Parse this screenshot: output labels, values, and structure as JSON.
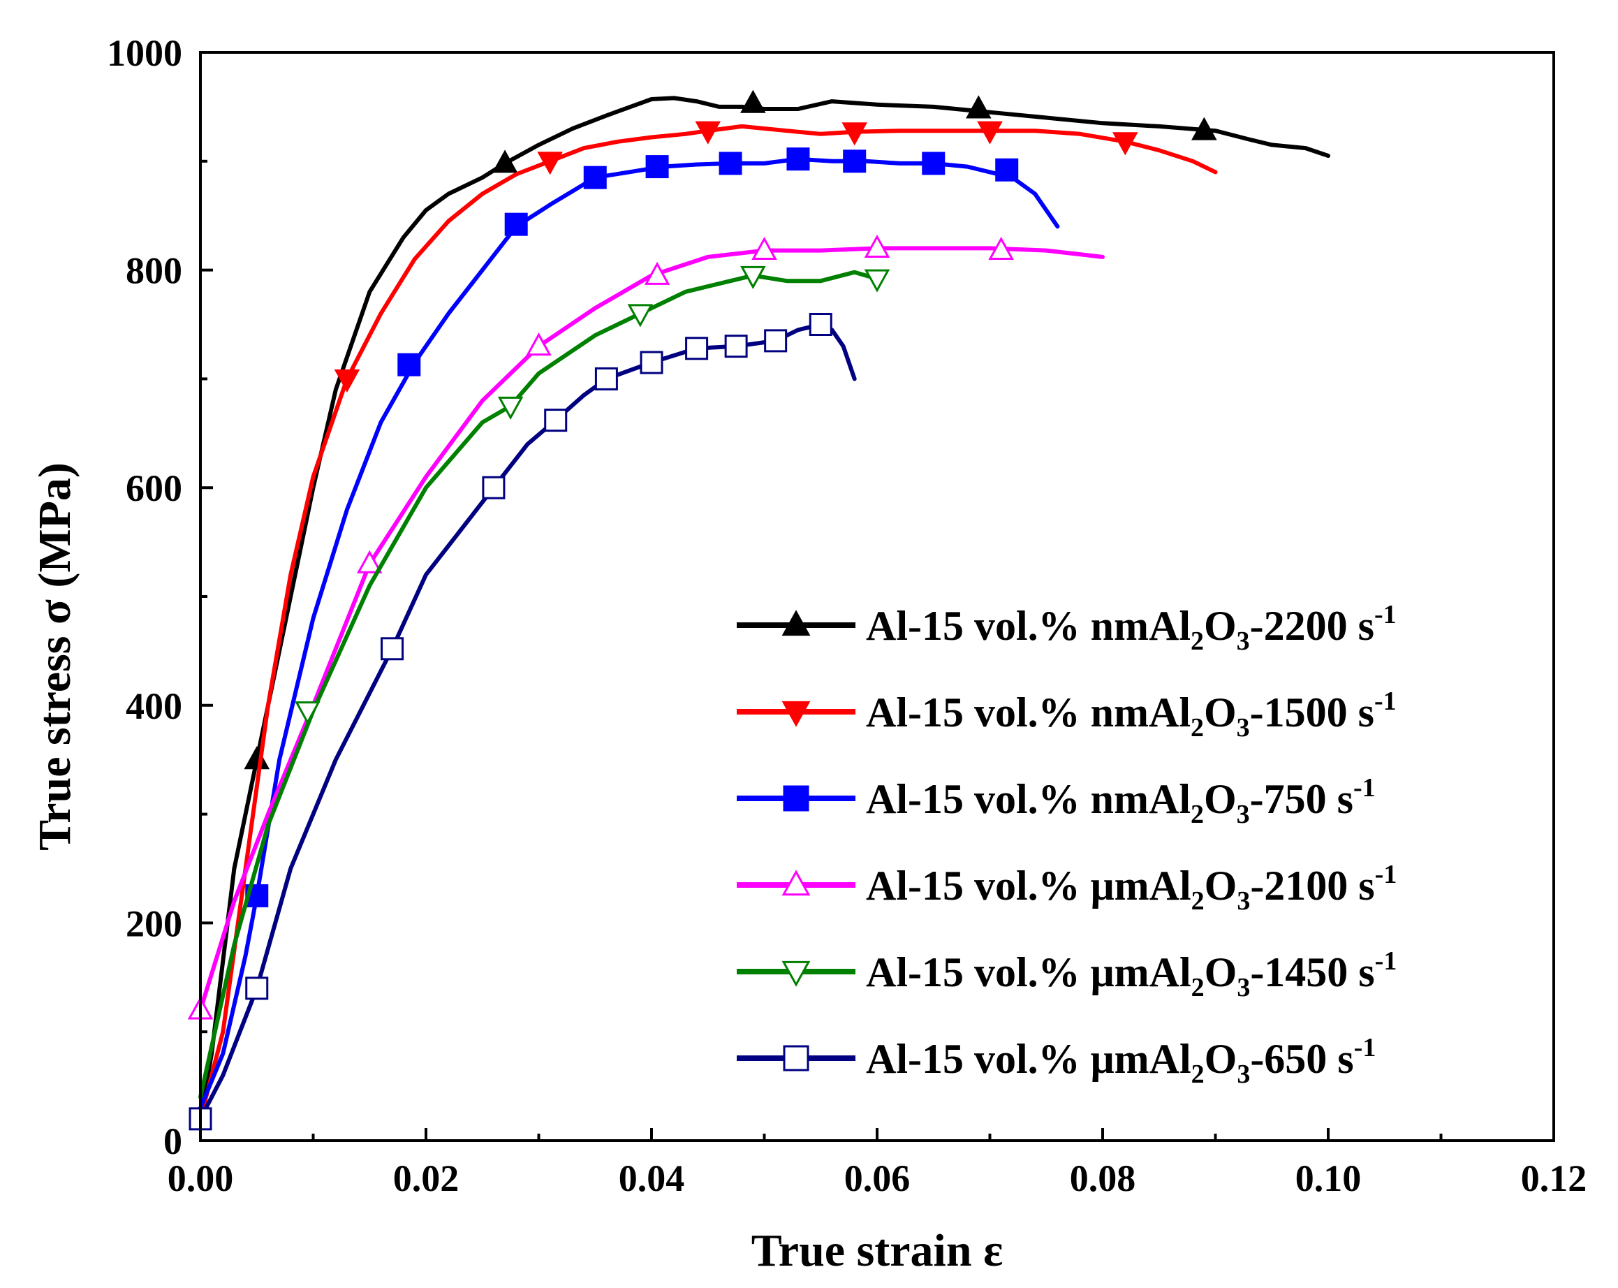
{
  "chart_data": {
    "type": "line",
    "title": "",
    "xlabel": "True strain ε",
    "ylabel": "True stress σ (MPa)",
    "xlim": [
      0.0,
      0.12
    ],
    "ylim": [
      0,
      1000
    ],
    "grid": false,
    "legend_position": "lower-right",
    "x_ticks": [
      0.0,
      0.02,
      0.04,
      0.06,
      0.08,
      0.1,
      0.12
    ],
    "x_tick_labels": [
      "0.00",
      "0.02",
      "0.04",
      "0.06",
      "0.08",
      "0.10",
      "0.12"
    ],
    "y_ticks": [
      0,
      200,
      400,
      600,
      800,
      1000
    ],
    "y_tick_labels": [
      "0",
      "200",
      "400",
      "600",
      "800",
      "1000"
    ],
    "series": [
      {
        "name": "Al-15 vol.% nmAl2O3-2200 s-1",
        "legend": {
          "prefix": "Al-15 vol.% nmAl",
          "sub1": "2",
          "mid": "O",
          "sub2": "3",
          "suffix": "-2200 s",
          "sup": "-1"
        },
        "color": "#000000",
        "marker": "triangle-up",
        "filled": true,
        "x": [
          0.0,
          0.001,
          0.003,
          0.005,
          0.008,
          0.01,
          0.012,
          0.015,
          0.018,
          0.02,
          0.022,
          0.025,
          0.027,
          0.03,
          0.033,
          0.036,
          0.04,
          0.042,
          0.044,
          0.046,
          0.048,
          0.05,
          0.053,
          0.056,
          0.06,
          0.065,
          0.07,
          0.075,
          0.08,
          0.085,
          0.09,
          0.093,
          0.095,
          0.098,
          0.1
        ],
        "y": [
          20,
          80,
          250,
          350,
          500,
          600,
          690,
          780,
          830,
          855,
          870,
          885,
          898,
          915,
          930,
          942,
          957,
          958,
          955,
          950,
          950,
          948,
          948,
          955,
          952,
          950,
          945,
          940,
          935,
          932,
          928,
          920,
          915,
          912,
          905
        ],
        "marker_x": [
          0.005,
          0.027,
          0.049,
          0.069,
          0.089
        ],
        "marker_y": [
          350,
          898,
          953,
          948,
          928
        ]
      },
      {
        "name": "Al-15 vol.% nmAl2O3-1500 s-1",
        "legend": {
          "prefix": "Al-15 vol.% nmAl",
          "sub1": "2",
          "mid": "O",
          "sub2": "3",
          "suffix": "-1500 s",
          "sup": "-1"
        },
        "color": "#ff0000",
        "marker": "triangle-down",
        "filled": true,
        "x": [
          0.0,
          0.002,
          0.004,
          0.006,
          0.008,
          0.01,
          0.013,
          0.016,
          0.019,
          0.022,
          0.025,
          0.028,
          0.031,
          0.034,
          0.037,
          0.04,
          0.043,
          0.045,
          0.048,
          0.052,
          0.055,
          0.058,
          0.062,
          0.066,
          0.07,
          0.074,
          0.078,
          0.082,
          0.085,
          0.088,
          0.09
        ],
        "y": [
          20,
          100,
          250,
          400,
          520,
          610,
          700,
          760,
          810,
          845,
          870,
          888,
          900,
          912,
          918,
          922,
          925,
          928,
          932,
          928,
          925,
          927,
          928,
          928,
          928,
          928,
          925,
          918,
          910,
          900,
          890
        ],
        "marker_x": [
          0.013,
          0.031,
          0.045,
          0.058,
          0.07,
          0.082
        ],
        "marker_y": [
          700,
          900,
          928,
          927,
          928,
          918
        ]
      },
      {
        "name": "Al-15 vol.% nmAl2O3-750 s-1",
        "legend": {
          "prefix": "Al-15 vol.% nmAl",
          "sub1": "2",
          "mid": "O",
          "sub2": "3",
          "suffix": "-750 s",
          "sup": "-1"
        },
        "color": "#0000ff",
        "marker": "square",
        "filled": true,
        "x": [
          0.0,
          0.002,
          0.004,
          0.005,
          0.007,
          0.01,
          0.013,
          0.016,
          0.019,
          0.022,
          0.025,
          0.028,
          0.031,
          0.035,
          0.038,
          0.041,
          0.044,
          0.047,
          0.05,
          0.053,
          0.056,
          0.059,
          0.062,
          0.065,
          0.068,
          0.07,
          0.072,
          0.074,
          0.075,
          0.076
        ],
        "y": [
          30,
          80,
          170,
          225,
          350,
          480,
          580,
          660,
          715,
          760,
          800,
          840,
          860,
          885,
          890,
          895,
          897,
          898,
          898,
          902,
          900,
          900,
          898,
          898,
          895,
          890,
          885,
          870,
          855,
          840
        ],
        "marker_x": [
          0.005,
          0.0185,
          0.028,
          0.035,
          0.0405,
          0.047,
          0.053,
          0.058,
          0.065,
          0.0715
        ],
        "marker_y": [
          225,
          713,
          842,
          885,
          895,
          898,
          902,
          900,
          898,
          892
        ]
      },
      {
        "name": "Al-15 vol.% μmAl2O3-2100 s-1",
        "legend": {
          "prefix": "Al-15 vol.% μmAl",
          "sub1": "2",
          "mid": "O",
          "sub2": "3",
          "suffix": "-2100 s",
          "sup": "-1"
        },
        "color": "#ff00ff",
        "marker": "triangle-up",
        "filled": false,
        "x": [
          0.0,
          0.003,
          0.006,
          0.01,
          0.015,
          0.02,
          0.025,
          0.03,
          0.035,
          0.04,
          0.045,
          0.05,
          0.055,
          0.06,
          0.065,
          0.07,
          0.075,
          0.08
        ],
        "y": [
          120,
          220,
          300,
          400,
          530,
          610,
          680,
          730,
          765,
          795,
          812,
          818,
          818,
          820,
          820,
          820,
          818,
          812
        ],
        "marker_x": [
          0.0,
          0.015,
          0.03,
          0.0405,
          0.05,
          0.06,
          0.071
        ],
        "marker_y": [
          120,
          530,
          730,
          795,
          818,
          820,
          818
        ]
      },
      {
        "name": "Al-15 vol.% μmAl2O3-1450 s-1",
        "legend": {
          "prefix": "Al-15 vol.% μmAl",
          "sub1": "2",
          "mid": "O",
          "sub2": "3",
          "suffix": "-1450 s",
          "sup": "-1"
        },
        "color": "#008000",
        "marker": "triangle-down",
        "filled": false,
        "x": [
          0.0,
          0.003,
          0.006,
          0.01,
          0.015,
          0.02,
          0.025,
          0.0275,
          0.03,
          0.035,
          0.039,
          0.043,
          0.047,
          0.049,
          0.052,
          0.055,
          0.058,
          0.06
        ],
        "y": [
          40,
          180,
          290,
          395,
          510,
          600,
          660,
          675,
          705,
          740,
          760,
          780,
          790,
          795,
          790,
          790,
          798,
          792
        ],
        "marker_x": [
          0.0095,
          0.0275,
          0.039,
          0.049,
          0.06
        ],
        "marker_y": [
          395,
          675,
          760,
          795,
          792
        ]
      },
      {
        "name": "Al-15 vol.% μmAl2O3-650 s-1",
        "legend": {
          "prefix": "Al-15 vol.% μmAl",
          "sub1": "2",
          "mid": "O",
          "sub2": "3",
          "suffix": "-650 s",
          "sup": "-1"
        },
        "color": "#000080",
        "marker": "square",
        "filled": false,
        "x": [
          0.0,
          0.002,
          0.005,
          0.008,
          0.012,
          0.017,
          0.02,
          0.023,
          0.026,
          0.029,
          0.0315,
          0.034,
          0.036,
          0.04,
          0.044,
          0.0475,
          0.051,
          0.053,
          0.055,
          0.056,
          0.057,
          0.058
        ],
        "y": [
          20,
          60,
          140,
          250,
          350,
          452,
          520,
          560,
          600,
          640,
          662,
          685,
          700,
          715,
          728,
          730,
          735,
          745,
          750,
          745,
          730,
          700
        ],
        "marker_x": [
          0.0,
          0.005,
          0.017,
          0.026,
          0.0315,
          0.036,
          0.04,
          0.044,
          0.0475,
          0.051,
          0.055
        ],
        "marker_y": [
          20,
          140,
          452,
          600,
          662,
          700,
          715,
          728,
          730,
          735,
          750
        ]
      }
    ]
  }
}
